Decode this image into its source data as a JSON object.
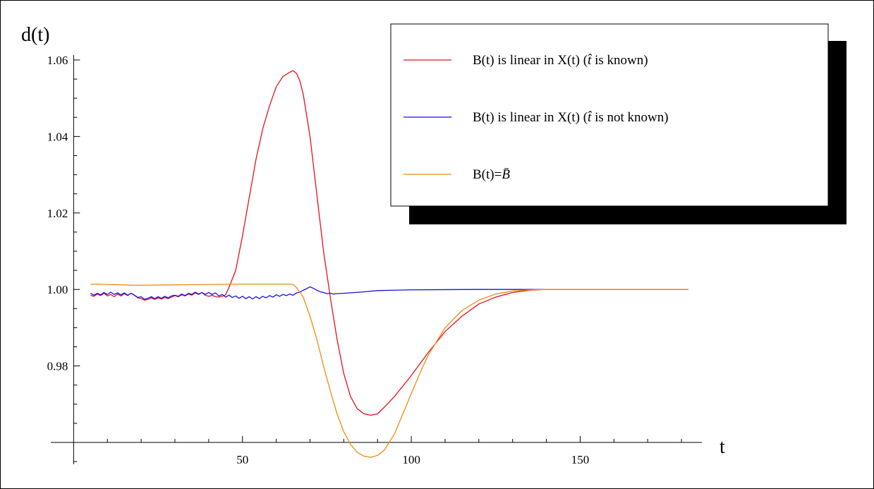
{
  "chart_data": {
    "type": "line",
    "xlabel": "t",
    "ylabel": "d(t)",
    "xlim": [
      -3,
      185
    ],
    "ylim": [
      0.96,
      1.06
    ],
    "x_origin": 0,
    "y_origin": 0.96,
    "xticks": [
      50,
      100,
      150
    ],
    "yticks": [
      0.98,
      1.0,
      1.02,
      1.04,
      1.06
    ],
    "ytick_labels": [
      "0.98",
      "1.00",
      "1.02",
      "1.04",
      "1.06"
    ],
    "grid": false,
    "legend_position": "top-right",
    "series": [
      {
        "name": "B(t) is linear in X(t) (t̂ is known)",
        "color": "#e8101a",
        "points": [
          [
            5,
            0.9985
          ],
          [
            6,
            0.9982
          ],
          [
            7,
            0.9988
          ],
          [
            8,
            0.9984
          ],
          [
            9,
            0.999
          ],
          [
            10,
            0.9983
          ],
          [
            11,
            0.9987
          ],
          [
            12,
            0.9981
          ],
          [
            13,
            0.9988
          ],
          [
            14,
            0.9983
          ],
          [
            15,
            0.9989
          ],
          [
            16,
            0.9984
          ],
          [
            17,
            0.999
          ],
          [
            18,
            0.9985
          ],
          [
            19,
            0.9978
          ],
          [
            20,
            0.9976
          ],
          [
            21,
            0.9972
          ],
          [
            22,
            0.9974
          ],
          [
            23,
            0.9978
          ],
          [
            24,
            0.9974
          ],
          [
            25,
            0.9978
          ],
          [
            26,
            0.9975
          ],
          [
            27,
            0.9979
          ],
          [
            28,
            0.9976
          ],
          [
            29,
            0.998
          ],
          [
            30,
            0.9984
          ],
          [
            31,
            0.9981
          ],
          [
            32,
            0.9986
          ],
          [
            33,
            0.9983
          ],
          [
            34,
            0.9988
          ],
          [
            35,
            0.9985
          ],
          [
            36,
            0.9991
          ],
          [
            37,
            0.9987
          ],
          [
            38,
            0.9992
          ],
          [
            39,
            0.9985
          ],
          [
            40,
            0.9982
          ],
          [
            41,
            0.9985
          ],
          [
            42,
            0.9981
          ],
          [
            43,
            0.998
          ],
          [
            44,
            0.9982
          ],
          [
            45,
            0.9986
          ],
          [
            46,
            1.0005
          ],
          [
            48,
            1.005
          ],
          [
            50,
            1.014
          ],
          [
            52,
            1.024
          ],
          [
            54,
            1.034
          ],
          [
            56,
            1.042
          ],
          [
            58,
            1.048
          ],
          [
            60,
            1.053
          ],
          [
            62,
            1.0557
          ],
          [
            64,
            1.0568
          ],
          [
            65,
            1.0572
          ],
          [
            66,
            1.0565
          ],
          [
            67,
            1.0545
          ],
          [
            68,
            1.051
          ],
          [
            70,
            1.04
          ],
          [
            72,
            1.025
          ],
          [
            74,
            1.01
          ],
          [
            76,
            0.998
          ],
          [
            78,
            0.987
          ],
          [
            80,
            0.978
          ],
          [
            82,
            0.972
          ],
          [
            84,
            0.9688
          ],
          [
            86,
            0.9675
          ],
          [
            88,
            0.9671
          ],
          [
            90,
            0.9675
          ],
          [
            92,
            0.9692
          ],
          [
            95,
            0.972
          ],
          [
            100,
            0.9775
          ],
          [
            105,
            0.9835
          ],
          [
            110,
            0.989
          ],
          [
            115,
            0.993
          ],
          [
            120,
            0.9962
          ],
          [
            125,
            0.998
          ],
          [
            130,
            0.9992
          ],
          [
            135,
            0.9998
          ],
          [
            140,
            1.0
          ],
          [
            150,
            1.0
          ],
          [
            160,
            1.0
          ],
          [
            170,
            1.0
          ],
          [
            182,
            1.0
          ]
        ]
      },
      {
        "name": "B(t) is linear in X(t) (t̂ is not known)",
        "color": "#1a10e0",
        "points": [
          [
            5,
            0.999
          ],
          [
            6,
            0.9985
          ],
          [
            7,
            0.999
          ],
          [
            8,
            0.9986
          ],
          [
            9,
            0.9992
          ],
          [
            10,
            0.9987
          ],
          [
            11,
            0.9993
          ],
          [
            12,
            0.9987
          ],
          [
            13,
            0.9991
          ],
          [
            14,
            0.9986
          ],
          [
            15,
            0.9991
          ],
          [
            16,
            0.9985
          ],
          [
            17,
            0.999
          ],
          [
            18,
            0.9985
          ],
          [
            19,
            0.9979
          ],
          [
            20,
            0.9981
          ],
          [
            21,
            0.9974
          ],
          [
            22,
            0.9977
          ],
          [
            23,
            0.9981
          ],
          [
            24,
            0.9976
          ],
          [
            25,
            0.9981
          ],
          [
            26,
            0.9977
          ],
          [
            27,
            0.9982
          ],
          [
            28,
            0.9978
          ],
          [
            29,
            0.9983
          ],
          [
            30,
            0.9985
          ],
          [
            31,
            0.9982
          ],
          [
            32,
            0.9988
          ],
          [
            33,
            0.9984
          ],
          [
            34,
            0.999
          ],
          [
            35,
            0.9987
          ],
          [
            36,
            0.9993
          ],
          [
            37,
            0.9988
          ],
          [
            38,
            0.9992
          ],
          [
            39,
            0.9987
          ],
          [
            40,
            0.9992
          ],
          [
            41,
            0.9987
          ],
          [
            42,
            0.9991
          ],
          [
            43,
            0.9983
          ],
          [
            44,
            0.9987
          ],
          [
            45,
            0.998
          ],
          [
            46,
            0.9985
          ],
          [
            47,
            0.9979
          ],
          [
            48,
            0.9983
          ],
          [
            49,
            0.9977
          ],
          [
            50,
            0.9982
          ],
          [
            51,
            0.9976
          ],
          [
            52,
            0.9981
          ],
          [
            53,
            0.9975
          ],
          [
            54,
            0.9981
          ],
          [
            55,
            0.9976
          ],
          [
            56,
            0.9982
          ],
          [
            57,
            0.9978
          ],
          [
            58,
            0.9984
          ],
          [
            59,
            0.998
          ],
          [
            60,
            0.9986
          ],
          [
            61,
            0.9982
          ],
          [
            62,
            0.9987
          ],
          [
            63,
            0.9984
          ],
          [
            64,
            0.9988
          ],
          [
            65,
            0.9985
          ],
          [
            66,
            0.9991
          ],
          [
            67,
            0.9993
          ],
          [
            68,
            0.9998
          ],
          [
            69,
            1.0002
          ],
          [
            70,
            1.0007
          ],
          [
            71,
            1.0003
          ],
          [
            72,
            0.9998
          ],
          [
            73,
            0.9994
          ],
          [
            74,
            0.9992
          ],
          [
            75,
            0.9989
          ],
          [
            76,
            0.999
          ],
          [
            77,
            0.9988
          ],
          [
            78,
            0.9989
          ],
          [
            80,
            0.999
          ],
          [
            85,
            0.9993
          ],
          [
            90,
            0.9997
          ],
          [
            95,
            0.9998
          ],
          [
            100,
            0.9999
          ],
          [
            120,
            1.0
          ],
          [
            150,
            1.0
          ],
          [
            182,
            1.0
          ]
        ]
      },
      {
        "name": "B(t)=B̄",
        "color": "#f08a10",
        "points": [
          [
            5,
            1.0013
          ],
          [
            7,
            1.0014
          ],
          [
            10,
            1.0013
          ],
          [
            15,
            1.0012
          ],
          [
            18,
            1.0011
          ],
          [
            20,
            1.0011
          ],
          [
            30,
            1.0012
          ],
          [
            40,
            1.0013
          ],
          [
            50,
            1.0014
          ],
          [
            60,
            1.0014
          ],
          [
            64,
            1.0014
          ],
          [
            65,
            1.0013
          ],
          [
            66,
            1.0005
          ],
          [
            68,
            0.998
          ],
          [
            70,
            0.993
          ],
          [
            72,
            0.987
          ],
          [
            74,
            0.98
          ],
          [
            76,
            0.9735
          ],
          [
            78,
            0.9675
          ],
          [
            80,
            0.9628
          ],
          [
            82,
            0.9595
          ],
          [
            84,
            0.9574
          ],
          [
            86,
            0.9564
          ],
          [
            88,
            0.9561
          ],
          [
            90,
            0.9566
          ],
          [
            92,
            0.958
          ],
          [
            95,
            0.9622
          ],
          [
            98,
            0.9685
          ],
          [
            100,
            0.9728
          ],
          [
            103,
            0.979
          ],
          [
            105,
            0.9828
          ],
          [
            110,
            0.99
          ],
          [
            115,
            0.9945
          ],
          [
            120,
            0.9972
          ],
          [
            125,
            0.9988
          ],
          [
            130,
            0.9996
          ],
          [
            135,
            0.9999
          ],
          [
            140,
            1.0
          ],
          [
            150,
            1.0
          ],
          [
            160,
            1.0
          ],
          [
            170,
            1.0
          ],
          [
            182,
            1.0
          ]
        ]
      }
    ],
    "legend_entries": [
      {
        "pre": "B(t) is linear in X(t) (",
        "italic": "t̂",
        "post": " is known)"
      },
      {
        "pre": "B(t) is linear in X(t) (",
        "italic": "t̂",
        "post": " is not known)"
      },
      {
        "pre": "B(t)=",
        "italic": "B̄",
        "post": ""
      }
    ]
  }
}
